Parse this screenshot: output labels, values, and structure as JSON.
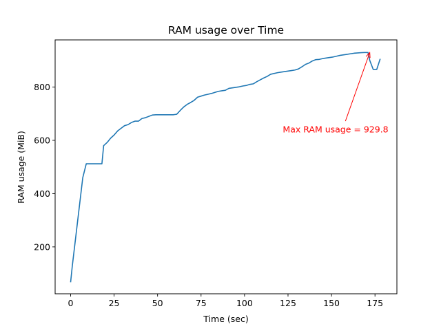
{
  "chart_data": {
    "type": "line",
    "title": "RAM usage over Time",
    "xlabel": "Time (sec)",
    "ylabel": "RAM usage (MiB)",
    "xlim": [
      -8.9,
      187.6
    ],
    "ylim": [
      24,
      977
    ],
    "x_ticks": [
      0,
      25,
      50,
      75,
      100,
      125,
      150,
      175
    ],
    "x_tick_labels": [
      "0",
      "25",
      "50",
      "75",
      "100",
      "125",
      "150",
      "175"
    ],
    "y_ticks": [
      200,
      400,
      600,
      800
    ],
    "y_tick_labels": [
      "200",
      "400",
      "600",
      "800"
    ],
    "grid": false,
    "colors": {
      "line": "#1f77b4",
      "annotation": "#ff0000",
      "axes": "#000000"
    },
    "series": [
      {
        "x": [
          0,
          1,
          3,
          5,
          7,
          9,
          10,
          12,
          14,
          16,
          18,
          19,
          21,
          23,
          25,
          27,
          29,
          31,
          33,
          35,
          37,
          39,
          41,
          43,
          45,
          47,
          49,
          51,
          53,
          55,
          57,
          59,
          61,
          63,
          65,
          67,
          69,
          71,
          73,
          75,
          77,
          79,
          81,
          83,
          85,
          87,
          89,
          91,
          93,
          95,
          97,
          99,
          101,
          103,
          105,
          107,
          109,
          111,
          113,
          115,
          117,
          119,
          121,
          123,
          125,
          127,
          129,
          131,
          133,
          135,
          137,
          139,
          141,
          143,
          145,
          147,
          149,
          151,
          153,
          155,
          157,
          159,
          161,
          163,
          165,
          167,
          169,
          171,
          172,
          174,
          176,
          178
        ],
        "y": [
          67,
          130,
          240,
          350,
          460,
          512,
          512,
          512,
          512,
          512,
          512,
          580,
          592,
          608,
          620,
          635,
          645,
          655,
          659,
          667,
          672,
          672,
          682,
          685,
          690,
          695,
          696,
          696,
          696,
          696,
          696,
          696,
          698,
          712,
          725,
          735,
          742,
          750,
          762,
          766,
          770,
          773,
          776,
          780,
          784,
          786,
          788,
          795,
          797,
          799,
          801,
          804,
          806,
          810,
          812,
          820,
          827,
          834,
          840,
          848,
          851,
          854,
          856,
          858,
          860,
          862,
          864,
          868,
          876,
          885,
          890,
          898,
          903,
          904,
          907,
          909,
          911,
          913,
          916,
          919,
          921,
          923,
          925,
          927,
          928,
          929,
          929.8,
          929.8,
          900,
          866,
          866,
          906
        ]
      }
    ],
    "annotation": {
      "text": "Max RAM usage = 929.8",
      "xy": [
        172,
        929.8
      ],
      "xytext": [
        122,
        630
      ]
    }
  }
}
